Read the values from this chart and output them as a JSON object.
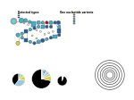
{
  "figsize": [
    1.5,
    1.09
  ],
  "dpi": 100,
  "bg_color": "#ffffff",
  "node_color_teal": "#40b0c8",
  "node_color_blue": "#2060a0",
  "node_color_dark_blue": "#1a3a6e",
  "node_color_cyan": "#70d0e0",
  "node_color_white": "#ffffff",
  "node_color_red": "#cc0000",
  "node_color_yellow": "#e8c840",
  "edge_color": "#888888",
  "pie1_slices": [
    0.72,
    0.08,
    0.05,
    0.04,
    0.03,
    0.03,
    0.02,
    0.02,
    0.01
  ],
  "pie1_colors": [
    "#000000",
    "#e8c840",
    "#90ee90",
    "#d0a0d0",
    "#a0c8e0",
    "#4080c0",
    "#008080",
    "#c0c0c0",
    "#ffffff"
  ],
  "pie2_slices": [
    0.95,
    0.05
  ],
  "pie2_colors": [
    "#000000",
    "#ffffff"
  ],
  "pie3_slices": [
    0.4,
    0.35,
    0.1,
    0.1,
    0.05
  ],
  "pie3_colors": [
    "#000000",
    "#a0c8e0",
    "#e8c840",
    "#90ee90",
    "#d0a0d0"
  ],
  "legend_right_colors": [
    "#e8c840",
    "#d0a0d0",
    "#90ee90",
    "#a0c8e0",
    "#4080c0",
    "#008080",
    "#c0c0c0"
  ],
  "title_left": "Detected types",
  "title_right": "One nucleotide variants"
}
